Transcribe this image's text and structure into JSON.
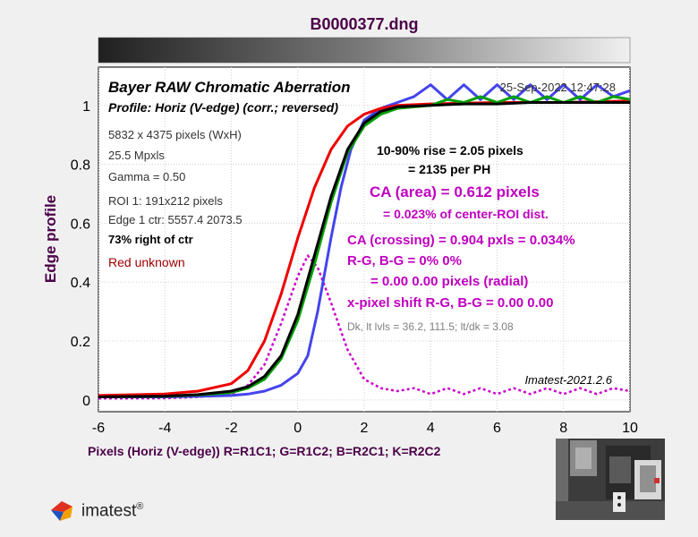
{
  "window_title": "B0000377.dng",
  "colors": {
    "title": "#4b0048",
    "red": "#ee0000",
    "green": "#00a000",
    "blue": "#4444ee",
    "black": "#000000",
    "magenta": "#cc00cc",
    "text_red": "#a00000",
    "text_magenta": "#c000c0",
    "text_gray": "#808080"
  },
  "plot": {
    "heading": "Bayer RAW Chromatic Aberration",
    "subheading": "Profile: Horiz (V-edge) (corr.; reversed)",
    "date": "25-Sep-2022 12:47:28",
    "info_lines": [
      "5832 x 4375 pixels (WxH)",
      "25.5 Mpxls",
      "Gamma = 0.50",
      "ROI 1: 191x212 pixels",
      "Edge 1 ctr: 5557.4  2073.5"
    ],
    "position_note": "73% right of ctr",
    "lens_note": "Red unknown",
    "rise_line1": "10-90% rise = 2.05 pixels",
    "rise_line2": "= 2135 per PH",
    "ca_area": "CA (area) = 0.612 pixels",
    "ca_area_pct": "= 0.023% of center-ROI dist.",
    "ca_crossing": "CA (crossing) = 0.904 pxls = 0.034%",
    "rg_bg": "R-G, B-G = 0%  0%",
    "rg_bg_px": "= 0.00  0.00 pixels (radial)",
    "xshift": "x-pixel shift R-G, B-G = 0.00  0.00",
    "levels": "Dk, lt lvls = 36.2, 111.5;  lt/dk = 3.08",
    "version": "Imatest-2021.2.6"
  },
  "bottom_label": "Pixels (Horiz (V-edge))   R=R1C1; G=R1C2; B=R2C1; K=R2C2",
  "logo_text": "imatest",
  "chart_data": {
    "type": "line",
    "title": "Bayer RAW Chromatic Aberration",
    "xlabel": "",
    "ylabel": "Edge profile",
    "xlim": [
      -6,
      10
    ],
    "ylim": [
      -0.04,
      1.13
    ],
    "x_ticks": [
      "-6",
      "-4",
      "-2",
      "0",
      "2",
      "4",
      "6",
      "8",
      "10"
    ],
    "y_ticks": [
      "0",
      "0.2",
      "0.4",
      "0.6",
      "0.8",
      "1"
    ],
    "grid": true,
    "series": [
      {
        "name": "R",
        "color": "#ee0000",
        "points": [
          [
            -6,
            0.015
          ],
          [
            -4,
            0.02
          ],
          [
            -3,
            0.03
          ],
          [
            -2,
            0.055
          ],
          [
            -1.5,
            0.1
          ],
          [
            -1,
            0.2
          ],
          [
            -0.5,
            0.36
          ],
          [
            0,
            0.55
          ],
          [
            0.5,
            0.72
          ],
          [
            1,
            0.85
          ],
          [
            1.5,
            0.93
          ],
          [
            2,
            0.97
          ],
          [
            2.5,
            0.99
          ],
          [
            3,
            1.0
          ],
          [
            4,
            1.005
          ],
          [
            6,
            1.01
          ],
          [
            8,
            1.01
          ],
          [
            10,
            1.015
          ]
        ]
      },
      {
        "name": "G",
        "color": "#00a000",
        "points": [
          [
            -6,
            0.01
          ],
          [
            -4,
            0.012
          ],
          [
            -3,
            0.017
          ],
          [
            -2,
            0.025
          ],
          [
            -1.5,
            0.04
          ],
          [
            -1,
            0.07
          ],
          [
            -0.5,
            0.14
          ],
          [
            0,
            0.27
          ],
          [
            0.5,
            0.46
          ],
          [
            1,
            0.67
          ],
          [
            1.5,
            0.84
          ],
          [
            2,
            0.93
          ],
          [
            2.5,
            0.97
          ],
          [
            3,
            0.99
          ],
          [
            3.5,
            0.995
          ],
          [
            4,
            1.0
          ],
          [
            4.5,
            1.02
          ],
          [
            5,
            1.01
          ],
          [
            5.5,
            1.03
          ],
          [
            6,
            1.01
          ],
          [
            6.5,
            1.03
          ],
          [
            7,
            1.01
          ],
          [
            7.5,
            1.03
          ],
          [
            8,
            1.01
          ],
          [
            8.5,
            1.03
          ],
          [
            9,
            1.01
          ],
          [
            9.5,
            1.03
          ],
          [
            10,
            1.02
          ]
        ]
      },
      {
        "name": "B",
        "color": "#4444ee",
        "points": [
          [
            -6,
            0.01
          ],
          [
            -4,
            0.01
          ],
          [
            -3,
            0.012
          ],
          [
            -2,
            0.015
          ],
          [
            -1.5,
            0.02
          ],
          [
            -1,
            0.03
          ],
          [
            -0.5,
            0.05
          ],
          [
            0,
            0.09
          ],
          [
            0.3,
            0.15
          ],
          [
            0.6,
            0.3
          ],
          [
            1,
            0.55
          ],
          [
            1.3,
            0.72
          ],
          [
            1.6,
            0.85
          ],
          [
            2,
            0.95
          ],
          [
            2.5,
            0.99
          ],
          [
            3,
            1.01
          ],
          [
            3.5,
            1.03
          ],
          [
            4,
            1.07
          ],
          [
            4.5,
            1.02
          ],
          [
            5,
            1.07
          ],
          [
            5.5,
            1.02
          ],
          [
            6,
            1.07
          ],
          [
            6.5,
            1.02
          ],
          [
            7,
            1.07
          ],
          [
            7.5,
            1.02
          ],
          [
            8,
            1.07
          ],
          [
            8.5,
            1.02
          ],
          [
            9,
            1.07
          ],
          [
            9.5,
            1.03
          ],
          [
            10,
            1.05
          ]
        ]
      },
      {
        "name": "K",
        "color": "#000000",
        "points": [
          [
            -6,
            0.01
          ],
          [
            -4,
            0.013
          ],
          [
            -3,
            0.018
          ],
          [
            -2,
            0.03
          ],
          [
            -1.5,
            0.045
          ],
          [
            -1,
            0.08
          ],
          [
            -0.5,
            0.15
          ],
          [
            0,
            0.29
          ],
          [
            0.5,
            0.49
          ],
          [
            1,
            0.69
          ],
          [
            1.5,
            0.85
          ],
          [
            2,
            0.94
          ],
          [
            2.5,
            0.98
          ],
          [
            3,
            0.995
          ],
          [
            4,
            1.0
          ],
          [
            5,
            1.005
          ],
          [
            6,
            1.005
          ],
          [
            7,
            1.01
          ],
          [
            8,
            1.01
          ],
          [
            9,
            1.01
          ],
          [
            10,
            1.01
          ]
        ]
      },
      {
        "name": "R-G",
        "color": "#cc00cc",
        "dashed": true,
        "points": [
          [
            -6,
            0.005
          ],
          [
            -4,
            0.006
          ],
          [
            -3,
            0.01
          ],
          [
            -2,
            0.02
          ],
          [
            -1.5,
            0.05
          ],
          [
            -1,
            0.12
          ],
          [
            -0.5,
            0.26
          ],
          [
            0,
            0.42
          ],
          [
            0.3,
            0.49
          ],
          [
            0.6,
            0.45
          ],
          [
            1,
            0.33
          ],
          [
            1.5,
            0.17
          ],
          [
            2,
            0.07
          ],
          [
            2.5,
            0.04
          ],
          [
            3,
            0.03
          ],
          [
            3.5,
            0.04
          ],
          [
            4,
            0.02
          ],
          [
            4.5,
            0.04
          ],
          [
            5,
            0.02
          ],
          [
            5.5,
            0.04
          ],
          [
            6,
            0.02
          ],
          [
            6.5,
            0.04
          ],
          [
            7,
            0.02
          ],
          [
            7.5,
            0.04
          ],
          [
            8,
            0.02
          ],
          [
            8.5,
            0.04
          ],
          [
            9,
            0.02
          ],
          [
            9.5,
            0.04
          ],
          [
            10,
            0.03
          ]
        ]
      }
    ]
  }
}
